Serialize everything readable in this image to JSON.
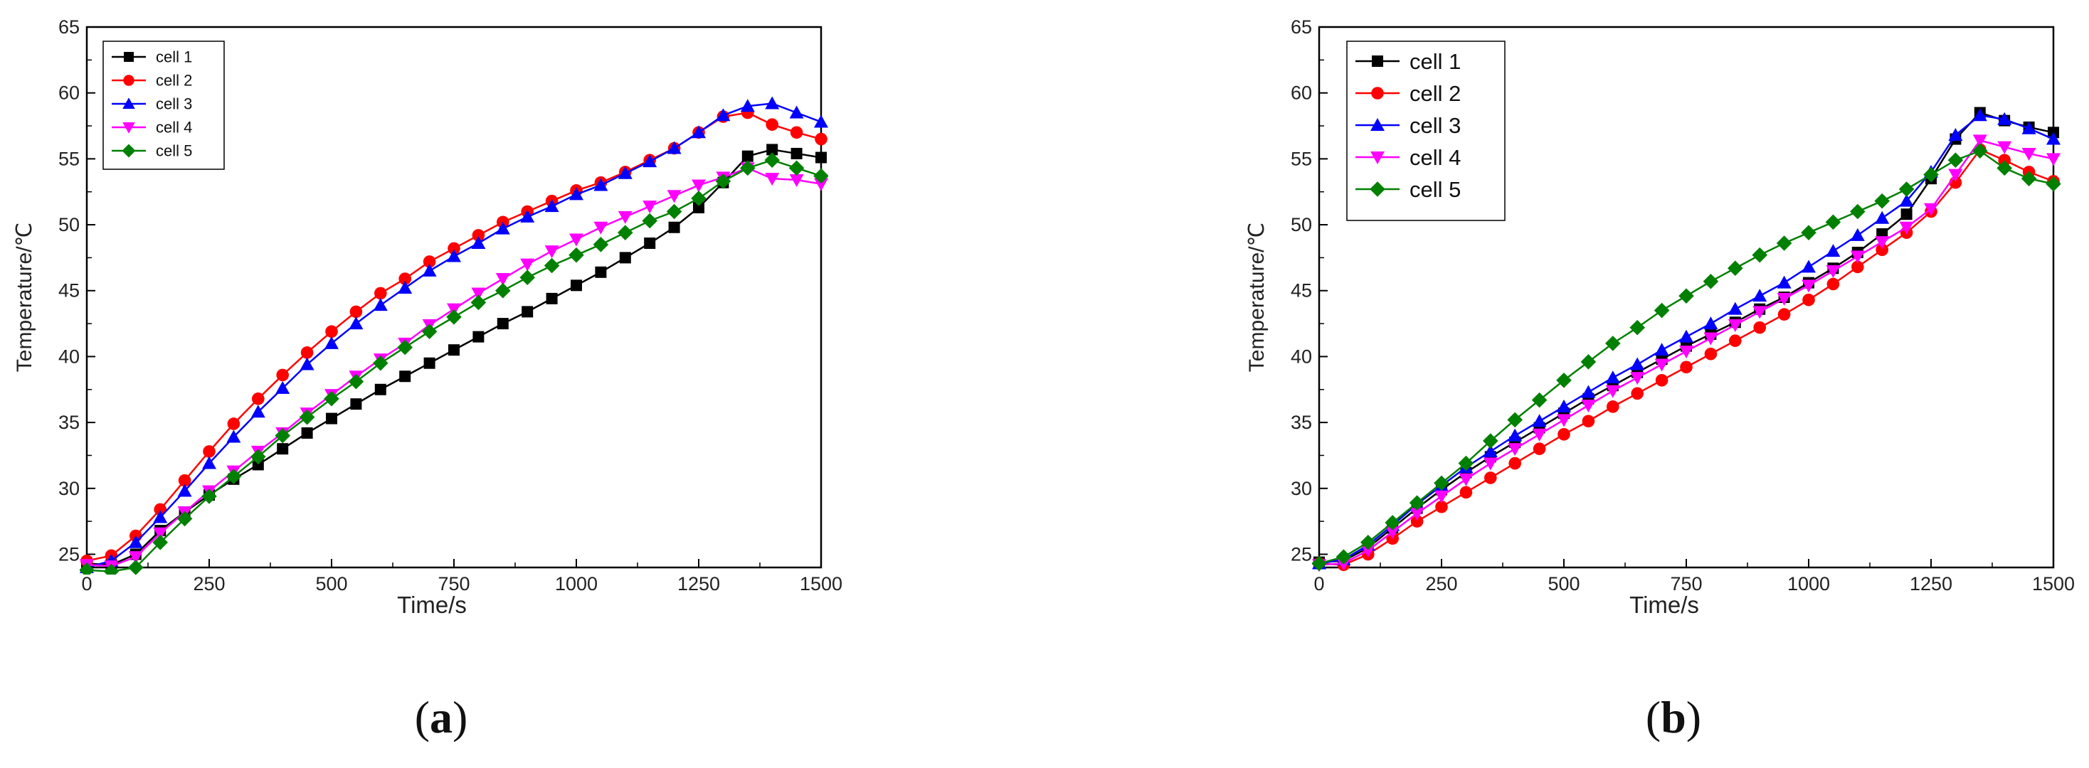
{
  "chart_data": [
    {
      "type": "line",
      "panel_label": "(a)",
      "panel_open": "(",
      "panel_letter": "a",
      "panel_close": ")",
      "xlabel": "Time/s",
      "ylabel": "Temperature/℃",
      "xlim": [
        0,
        1500
      ],
      "ylim": [
        24,
        65
      ],
      "xticks": [
        0,
        250,
        500,
        750,
        1000,
        1250,
        1500
      ],
      "yticks": [
        25,
        30,
        35,
        40,
        45,
        50,
        55,
        60,
        65
      ],
      "legend_position": "top-left",
      "x": [
        0,
        50,
        100,
        150,
        200,
        250,
        300,
        350,
        400,
        450,
        500,
        550,
        600,
        650,
        700,
        750,
        800,
        850,
        900,
        950,
        1000,
        1050,
        1100,
        1150,
        1200,
        1250,
        1300,
        1350,
        1400,
        1450,
        1500
      ],
      "series": [
        {
          "name": "cell 1",
          "color": "#000000",
          "marker": "square",
          "values": [
            24.3,
            24.2,
            25.0,
            26.8,
            28.2,
            29.5,
            30.7,
            31.8,
            33.0,
            34.2,
            35.3,
            36.4,
            37.5,
            38.5,
            39.5,
            40.5,
            41.5,
            42.5,
            43.4,
            44.4,
            45.4,
            46.4,
            47.5,
            48.6,
            49.8,
            51.3,
            53.2,
            55.2,
            55.7,
            55.4,
            55.1
          ]
        },
        {
          "name": "cell 2",
          "color": "#ff0000",
          "marker": "circle",
          "values": [
            24.5,
            24.9,
            26.4,
            28.4,
            30.6,
            32.8,
            34.9,
            36.8,
            38.6,
            40.3,
            41.9,
            43.4,
            44.8,
            45.9,
            47.2,
            48.2,
            49.2,
            50.2,
            51.0,
            51.8,
            52.6,
            53.2,
            54.0,
            54.9,
            55.8,
            57.0,
            58.2,
            58.5,
            57.6,
            57.0,
            56.5
          ]
        },
        {
          "name": "cell 3",
          "color": "#0000ff",
          "marker": "triangle-up",
          "values": [
            24.0,
            24.5,
            25.9,
            27.8,
            29.8,
            31.9,
            33.9,
            35.8,
            37.6,
            39.4,
            41.0,
            42.5,
            43.9,
            45.2,
            46.5,
            47.6,
            48.6,
            49.7,
            50.6,
            51.4,
            52.3,
            53.0,
            53.9,
            54.8,
            55.8,
            57.0,
            58.3,
            59.0,
            59.2,
            58.5,
            57.8
          ]
        },
        {
          "name": "cell 4",
          "color": "#ff00ff",
          "marker": "triangle-down",
          "values": [
            24.2,
            24.1,
            24.8,
            26.6,
            28.2,
            29.8,
            31.3,
            32.8,
            34.2,
            35.7,
            37.1,
            38.5,
            39.8,
            41.0,
            42.4,
            43.6,
            44.8,
            45.9,
            47.0,
            48.0,
            48.9,
            49.8,
            50.6,
            51.4,
            52.2,
            53.0,
            53.6,
            54.3,
            53.5,
            53.4,
            53.1
          ]
        },
        {
          "name": "cell 5",
          "color": "#008000",
          "marker": "diamond",
          "values": [
            23.8,
            23.7,
            24.0,
            25.9,
            27.7,
            29.4,
            30.9,
            32.4,
            34.0,
            35.4,
            36.8,
            38.1,
            39.5,
            40.7,
            41.9,
            43.0,
            44.1,
            45.0,
            46.0,
            46.9,
            47.7,
            48.5,
            49.4,
            50.3,
            51.0,
            52.0,
            53.3,
            54.3,
            54.9,
            54.3,
            53.7
          ]
        }
      ]
    },
    {
      "type": "line",
      "panel_label": "(b)",
      "panel_open": "(",
      "panel_letter": "b",
      "panel_close": ")",
      "xlabel": "Time/s",
      "ylabel": "Temperature/℃",
      "xlim": [
        0,
        1500
      ],
      "ylim": [
        24,
        65
      ],
      "xticks": [
        0,
        250,
        500,
        750,
        1000,
        1250,
        1500
      ],
      "yticks": [
        25,
        30,
        35,
        40,
        45,
        50,
        55,
        60,
        65
      ],
      "legend_position": "top-left",
      "x": [
        0,
        50,
        100,
        150,
        200,
        250,
        300,
        350,
        400,
        450,
        500,
        550,
        600,
        650,
        700,
        750,
        800,
        850,
        900,
        950,
        1000,
        1050,
        1100,
        1150,
        1200,
        1250,
        1300,
        1350,
        1400,
        1450,
        1500
      ],
      "series": [
        {
          "name": "cell 1",
          "color": "#000000",
          "marker": "square",
          "values": [
            24.4,
            24.5,
            25.5,
            27.0,
            28.5,
            29.9,
            31.2,
            32.4,
            33.5,
            34.6,
            35.7,
            36.8,
            37.8,
            38.8,
            39.8,
            40.8,
            41.7,
            42.6,
            43.6,
            44.5,
            45.6,
            46.7,
            47.9,
            49.3,
            50.8,
            53.5,
            56.5,
            58.5,
            57.9,
            57.4,
            57.0
          ]
        },
        {
          "name": "cell 2",
          "color": "#ff0000",
          "marker": "circle",
          "values": [
            24.3,
            24.2,
            25.0,
            26.2,
            27.5,
            28.6,
            29.7,
            30.8,
            31.9,
            33.0,
            34.1,
            35.1,
            36.2,
            37.2,
            38.2,
            39.2,
            40.2,
            41.2,
            42.2,
            43.2,
            44.3,
            45.5,
            46.8,
            48.1,
            49.4,
            51.0,
            53.2,
            55.7,
            54.9,
            54.0,
            53.3
          ]
        },
        {
          "name": "cell 3",
          "color": "#0000ff",
          "marker": "triangle-up",
          "values": [
            24.3,
            24.6,
            25.7,
            27.2,
            28.8,
            30.2,
            31.6,
            32.8,
            34.0,
            35.1,
            36.2,
            37.3,
            38.4,
            39.4,
            40.5,
            41.5,
            42.5,
            43.6,
            44.6,
            45.6,
            46.8,
            48.0,
            49.2,
            50.5,
            51.8,
            54.0,
            56.8,
            58.3,
            58.0,
            57.3,
            56.5
          ]
        },
        {
          "name": "cell 4",
          "color": "#ff00ff",
          "marker": "triangle-down",
          "values": [
            24.2,
            24.3,
            25.3,
            26.7,
            28.1,
            29.4,
            30.7,
            31.9,
            33.0,
            34.1,
            35.2,
            36.3,
            37.4,
            38.4,
            39.4,
            40.4,
            41.4,
            42.4,
            43.4,
            44.4,
            45.4,
            46.5,
            47.6,
            48.7,
            49.8,
            51.2,
            53.8,
            56.4,
            55.9,
            55.4,
            55.0
          ]
        },
        {
          "name": "cell 5",
          "color": "#008000",
          "marker": "diamond",
          "values": [
            24.3,
            24.8,
            25.9,
            27.4,
            28.9,
            30.4,
            31.9,
            33.6,
            35.2,
            36.7,
            38.2,
            39.6,
            41.0,
            42.2,
            43.5,
            44.6,
            45.7,
            46.7,
            47.7,
            48.6,
            49.4,
            50.2,
            51.0,
            51.8,
            52.7,
            53.8,
            54.9,
            55.6,
            54.3,
            53.5,
            53.1
          ]
        }
      ]
    }
  ]
}
